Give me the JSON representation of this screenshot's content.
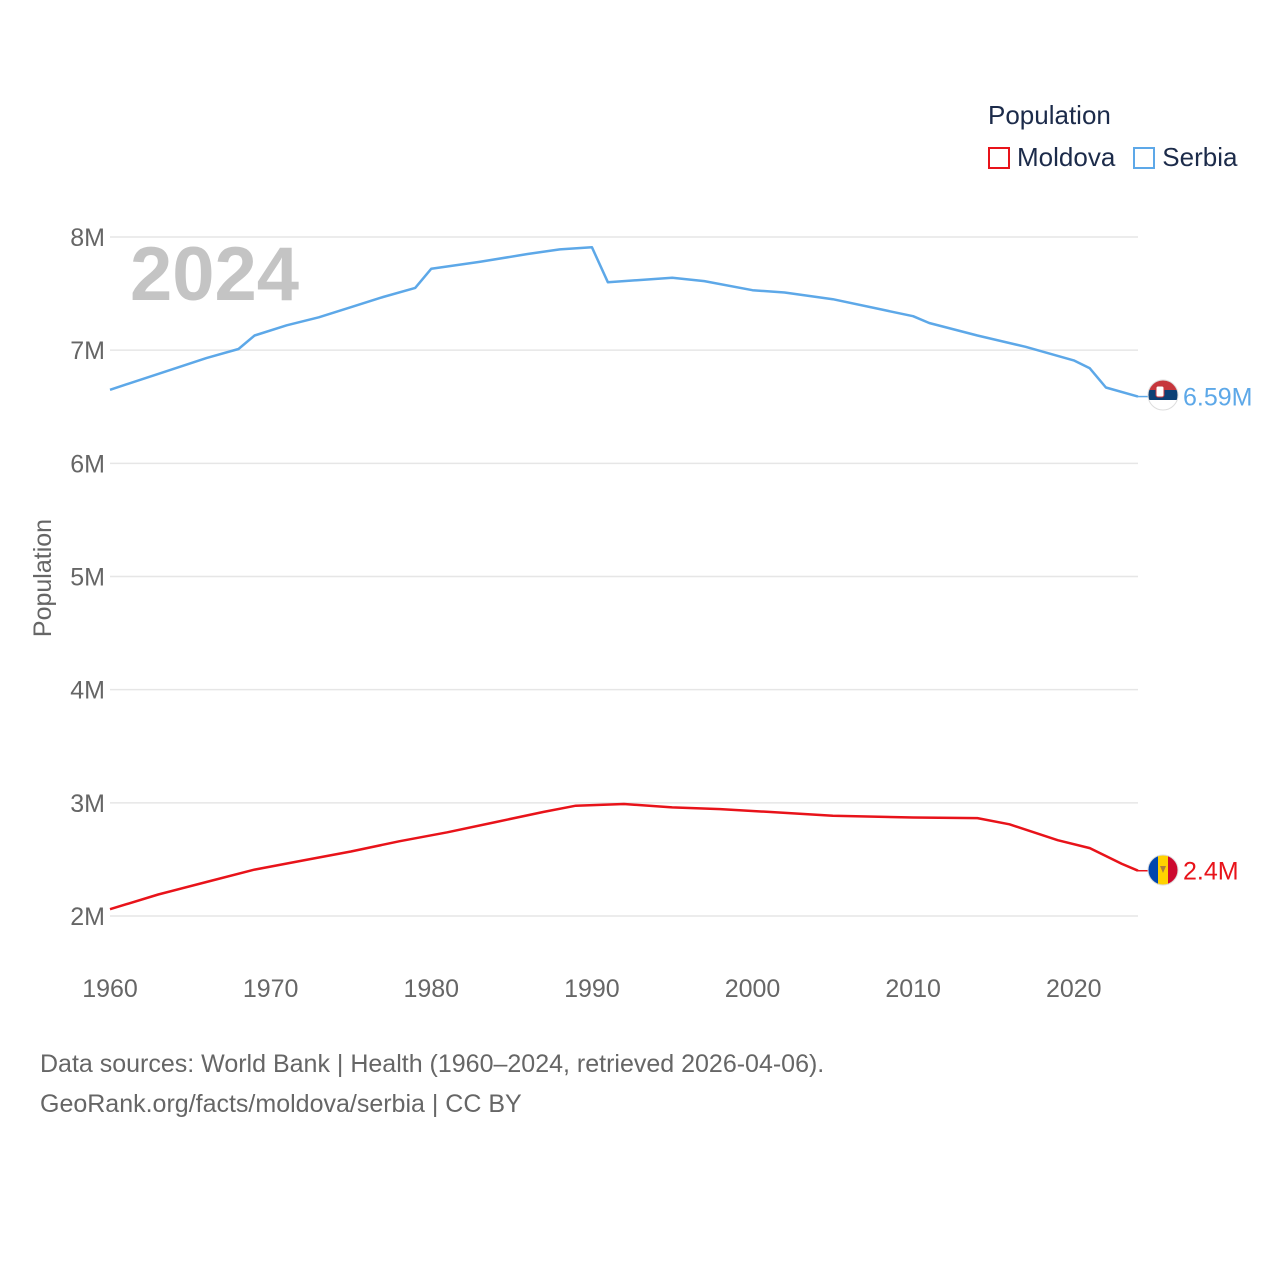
{
  "legend": {
    "title": "Population",
    "items": [
      {
        "label": "Moldova",
        "color": "#e8131a"
      },
      {
        "label": "Serbia",
        "color": "#5da8e8"
      }
    ]
  },
  "footer": {
    "line1": "Data sources: World Bank | Health (1960–2024, retrieved 2026-04-06).",
    "line2": "GeoRank.org/facts/moldova/serbia | CC BY"
  },
  "chart_data": {
    "type": "line",
    "year_label": "2024",
    "ylabel": "Population",
    "xlabel": "",
    "xlim": [
      1960,
      2024
    ],
    "ylim": [
      2000000,
      8000000
    ],
    "y_ticks": [
      {
        "value": 2000000,
        "label": "2M"
      },
      {
        "value": 3000000,
        "label": "3M"
      },
      {
        "value": 4000000,
        "label": "4M"
      },
      {
        "value": 5000000,
        "label": "5M"
      },
      {
        "value": 6000000,
        "label": "6M"
      },
      {
        "value": 7000000,
        "label": "7M"
      },
      {
        "value": 8000000,
        "label": "8M"
      }
    ],
    "x_ticks": [
      {
        "value": 1960,
        "label": "1960"
      },
      {
        "value": 1970,
        "label": "1970"
      },
      {
        "value": 1980,
        "label": "1980"
      },
      {
        "value": 1990,
        "label": "1990"
      },
      {
        "value": 2000,
        "label": "2000"
      },
      {
        "value": 2010,
        "label": "2010"
      },
      {
        "value": 2020,
        "label": "2020"
      }
    ],
    "grid": true,
    "legend_position": "top-right",
    "series": [
      {
        "name": "Serbia",
        "color": "#5da8e8",
        "end_label": "6.59M",
        "points": [
          [
            1960,
            6650000
          ],
          [
            1963,
            6790000
          ],
          [
            1966,
            6930000
          ],
          [
            1968,
            7010000
          ],
          [
            1969,
            7130000
          ],
          [
            1971,
            7220000
          ],
          [
            1973,
            7290000
          ],
          [
            1975,
            7380000
          ],
          [
            1977,
            7470000
          ],
          [
            1979,
            7550000
          ],
          [
            1980,
            7720000
          ],
          [
            1983,
            7780000
          ],
          [
            1986,
            7850000
          ],
          [
            1988,
            7890000
          ],
          [
            1990,
            7910000
          ],
          [
            1991,
            7600000
          ],
          [
            1995,
            7640000
          ],
          [
            1997,
            7610000
          ],
          [
            2000,
            7530000
          ],
          [
            2002,
            7510000
          ],
          [
            2005,
            7450000
          ],
          [
            2008,
            7360000
          ],
          [
            2010,
            7300000
          ],
          [
            2011,
            7240000
          ],
          [
            2014,
            7130000
          ],
          [
            2017,
            7030000
          ],
          [
            2020,
            6910000
          ],
          [
            2021,
            6840000
          ],
          [
            2022,
            6670000
          ],
          [
            2024,
            6590000
          ]
        ]
      },
      {
        "name": "Moldova",
        "color": "#e8131a",
        "end_label": "2.4M",
        "points": [
          [
            1960,
            2060000
          ],
          [
            1963,
            2190000
          ],
          [
            1966,
            2300000
          ],
          [
            1969,
            2410000
          ],
          [
            1972,
            2490000
          ],
          [
            1975,
            2570000
          ],
          [
            1978,
            2660000
          ],
          [
            1981,
            2740000
          ],
          [
            1984,
            2830000
          ],
          [
            1987,
            2920000
          ],
          [
            1989,
            2975000
          ],
          [
            1992,
            2990000
          ],
          [
            1995,
            2960000
          ],
          [
            1998,
            2945000
          ],
          [
            2001,
            2920000
          ],
          [
            2005,
            2885000
          ],
          [
            2010,
            2870000
          ],
          [
            2014,
            2865000
          ],
          [
            2016,
            2810000
          ],
          [
            2019,
            2670000
          ],
          [
            2021,
            2600000
          ],
          [
            2023,
            2460000
          ],
          [
            2024,
            2400000
          ]
        ]
      }
    ]
  }
}
